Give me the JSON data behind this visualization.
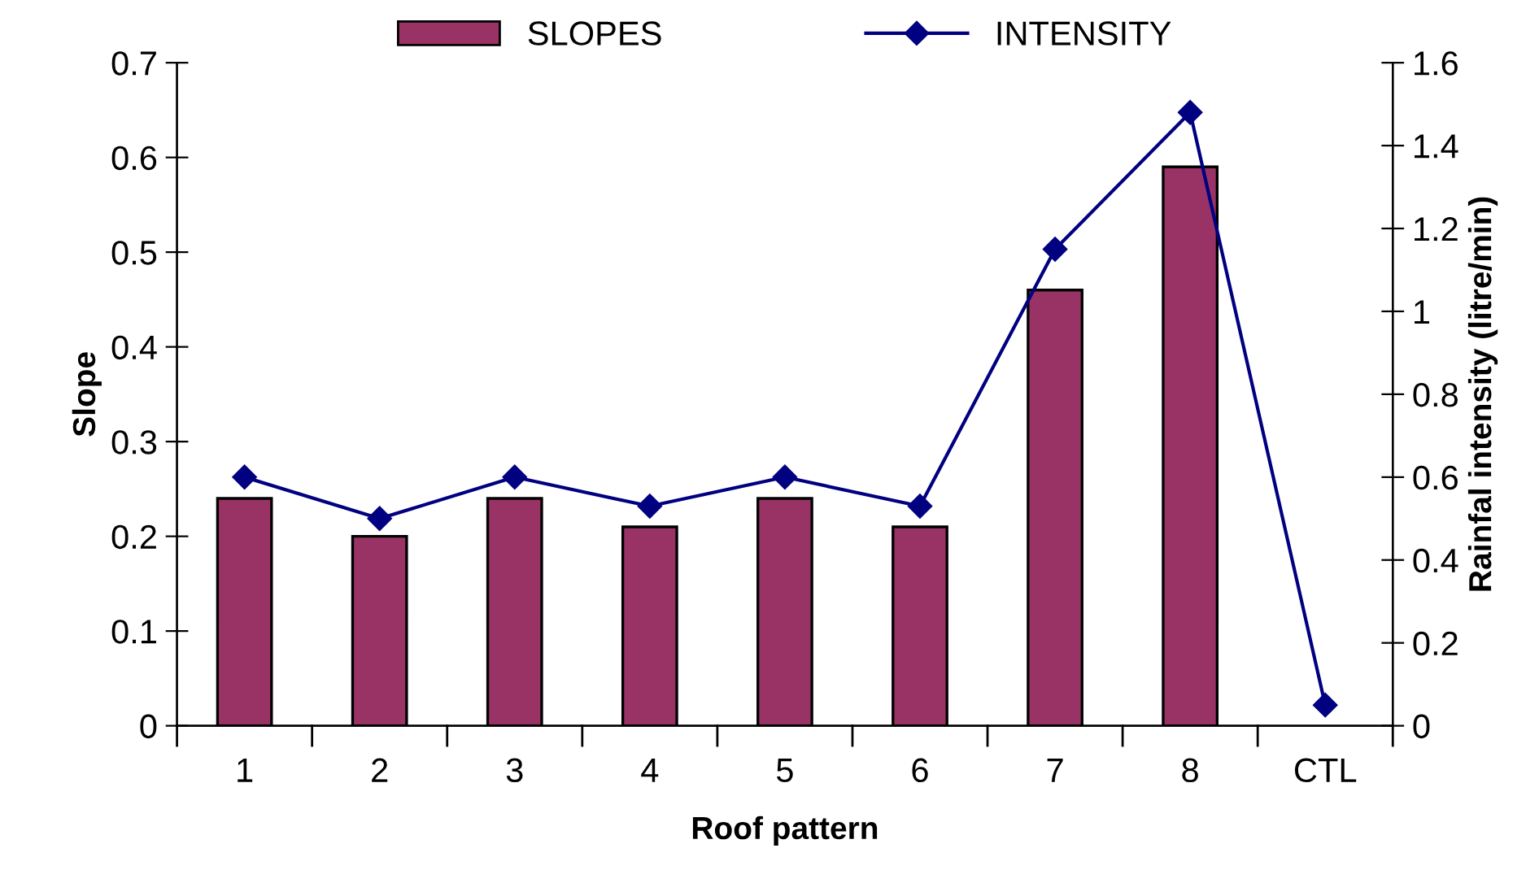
{
  "chart_data": {
    "type": "bar",
    "xlabel": "Roof pattern",
    "ylabel": "Slope",
    "y2label": "Rainfal intensity (litre/min)",
    "categories": [
      "1",
      "2",
      "3",
      "4",
      "5",
      "6",
      "7",
      "8",
      "CTL"
    ],
    "series": [
      {
        "name": "SLOPES",
        "color": "#993366",
        "values": [
          0.24,
          0.2,
          0.24,
          0.21,
          0.24,
          0.21,
          0.46,
          0.59,
          null
        ]
      },
      {
        "name": "INTENSITY",
        "type": "line",
        "axis": "y2",
        "color": "#000080",
        "marker": "diamond",
        "values": [
          0.6,
          0.5,
          0.6,
          0.53,
          0.6,
          0.53,
          1.15,
          1.48,
          0.05
        ]
      }
    ],
    "ylim": [
      0,
      0.7
    ],
    "yticks": [
      0,
      0.1,
      0.2,
      0.3,
      0.4,
      0.5,
      0.6,
      0.7
    ],
    "y2lim": [
      0,
      1.6
    ],
    "y2ticks": [
      0,
      0.2,
      0.4,
      0.6,
      0.8,
      1,
      1.2,
      1.4,
      1.6
    ],
    "legend": "top",
    "grid": false
  }
}
